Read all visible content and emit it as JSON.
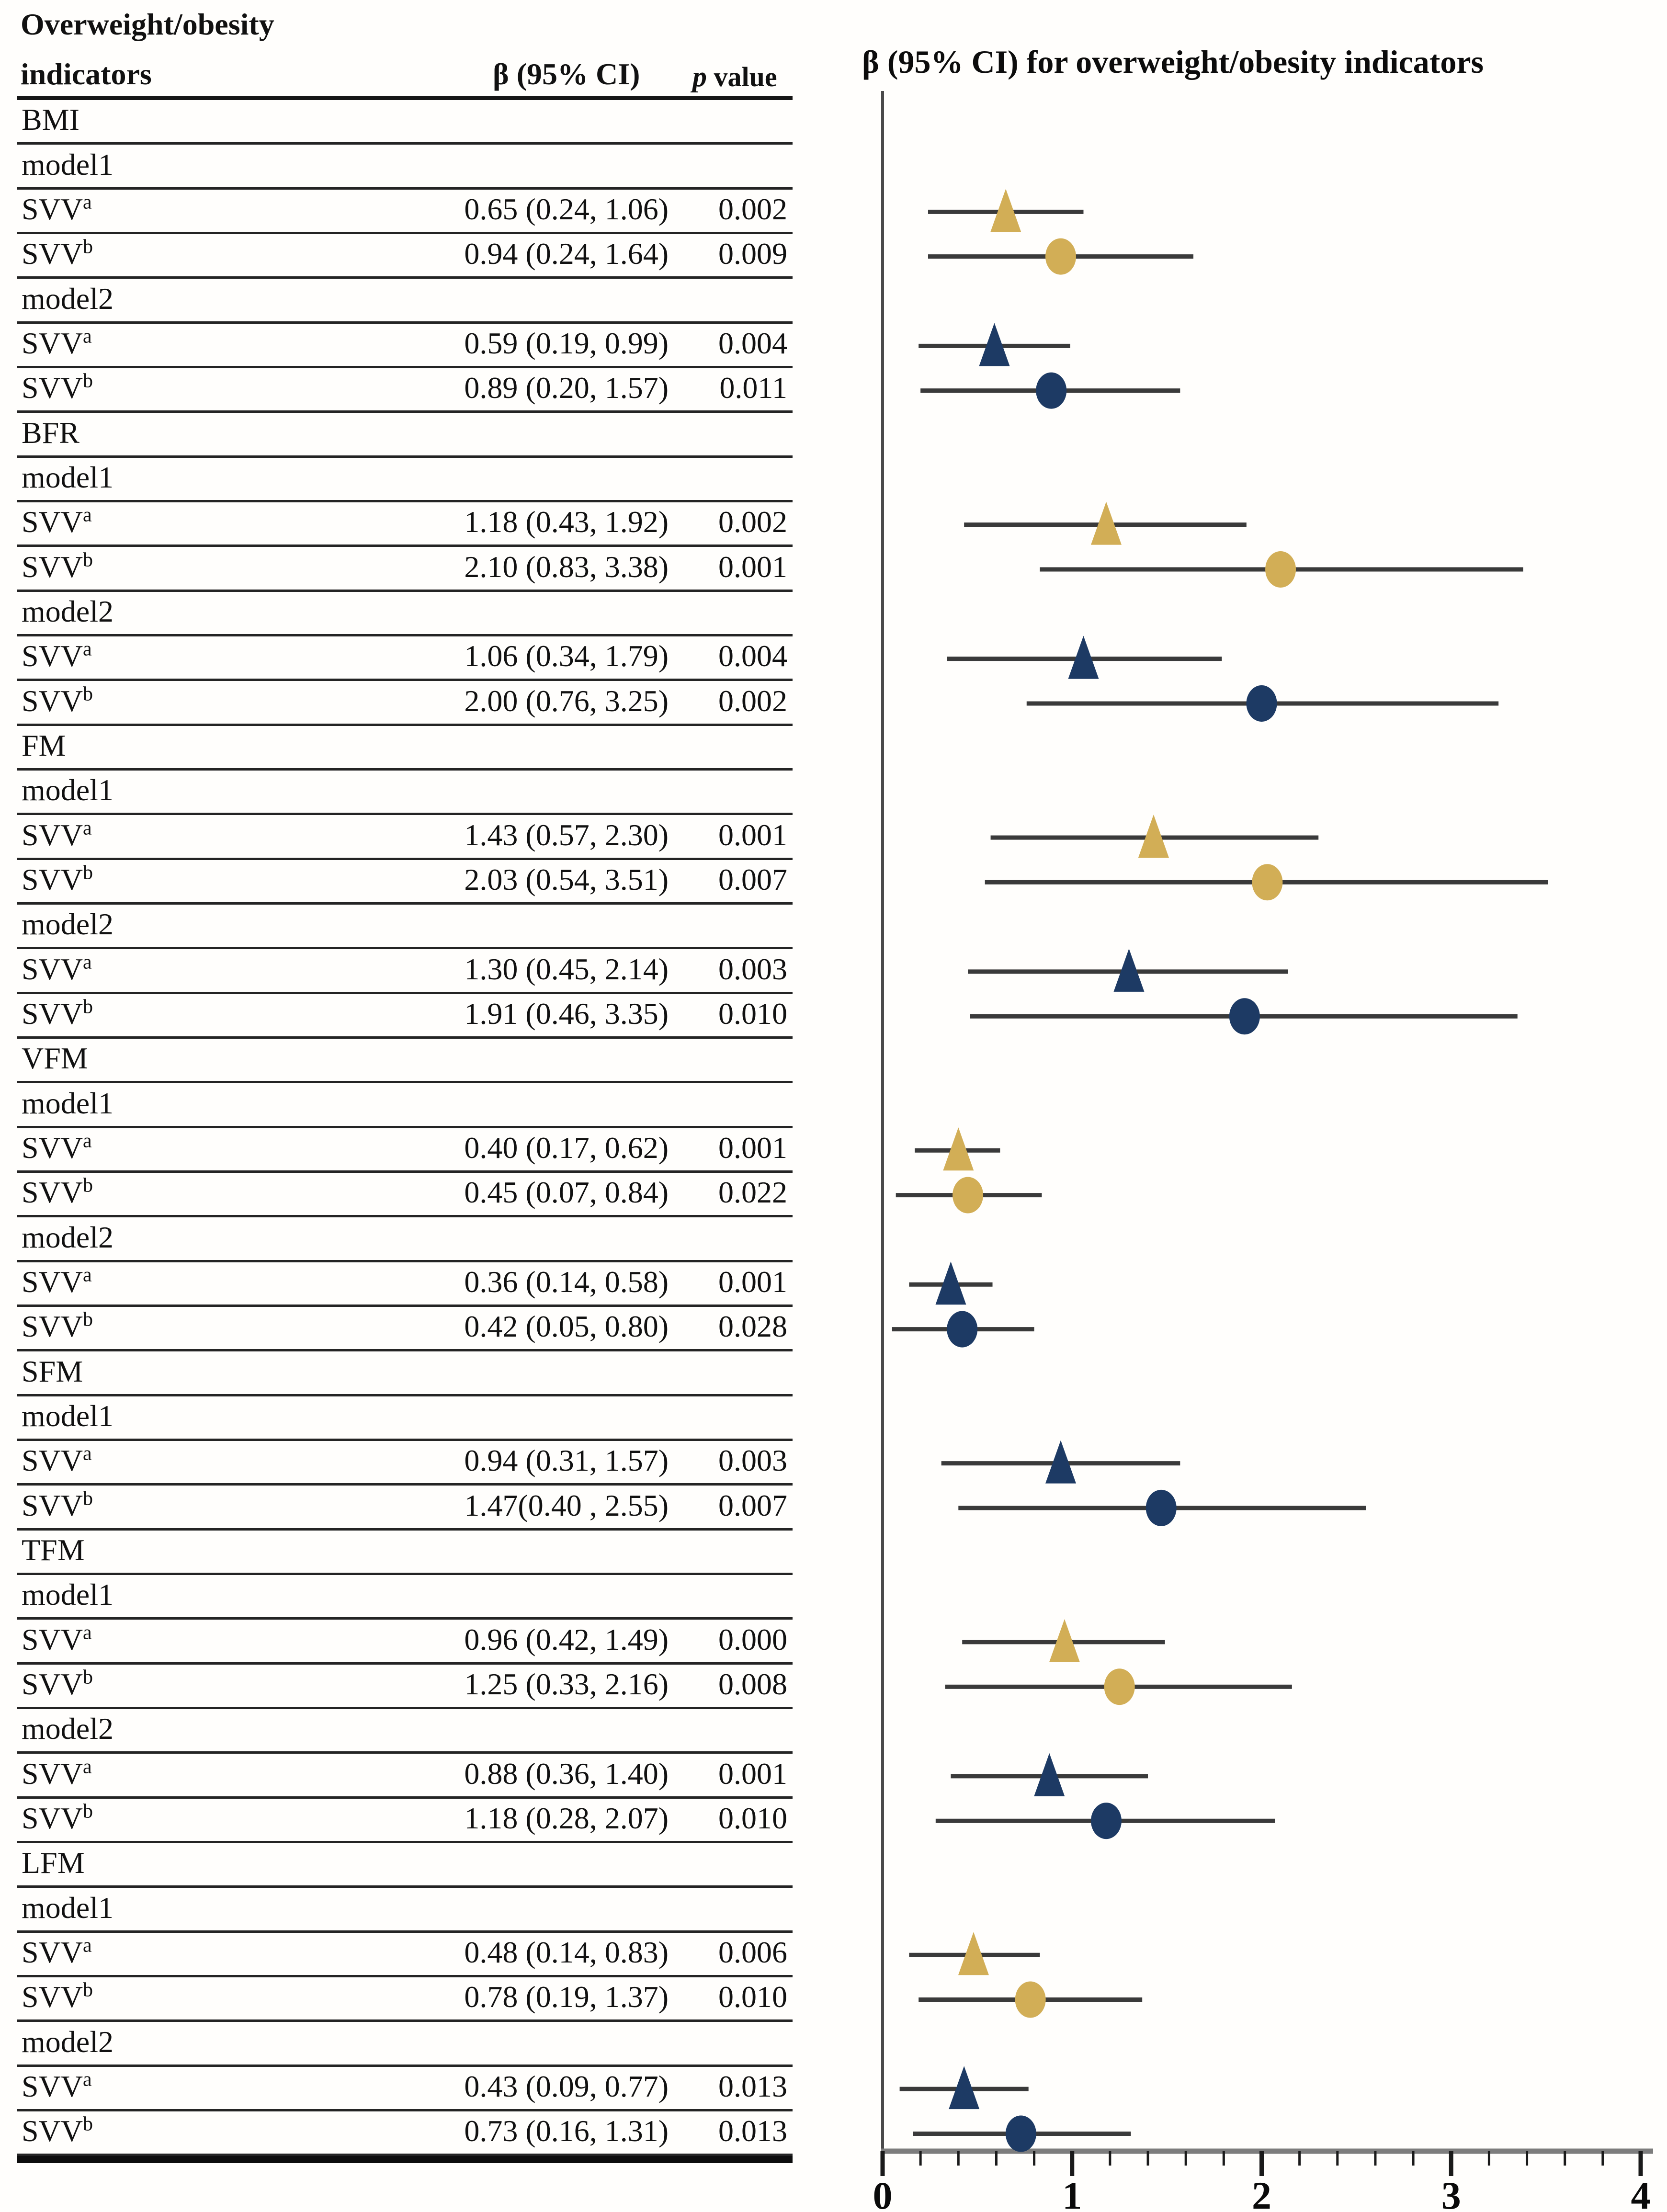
{
  "table": {
    "header": {
      "col1_line1": "Overweight/obesity",
      "col1_line2": "indicators",
      "beta_ci": "β  (95% CI)",
      "p_italic": "p",
      "p_rest": " value"
    },
    "rows": [
      {
        "type": "section",
        "label": "BMI"
      },
      {
        "type": "model",
        "label": "model1"
      },
      {
        "type": "data",
        "label": "SVV",
        "sup": "a",
        "beta_ci": "0.65 (0.24, 1.06)",
        "p": "0.002",
        "marker": {
          "shape": "triangle",
          "color": "gold",
          "beta": 0.65,
          "lo": 0.24,
          "hi": 1.06
        }
      },
      {
        "type": "data",
        "label": "SVV",
        "sup": "b",
        "beta_ci": "0.94 (0.24, 1.64)",
        "p": "0.009",
        "marker": {
          "shape": "circle",
          "color": "gold",
          "beta": 0.94,
          "lo": 0.24,
          "hi": 1.64
        }
      },
      {
        "type": "model",
        "label": "model2"
      },
      {
        "type": "data",
        "label": "SVV",
        "sup": "a",
        "beta_ci": "0.59 (0.19, 0.99)",
        "p": "0.004",
        "marker": {
          "shape": "triangle",
          "color": "navy",
          "beta": 0.59,
          "lo": 0.19,
          "hi": 0.99
        }
      },
      {
        "type": "data",
        "label": "SVV",
        "sup": "b",
        "beta_ci": "0.89 (0.20, 1.57)",
        "p": "0.011",
        "marker": {
          "shape": "circle",
          "color": "navy",
          "beta": 0.89,
          "lo": 0.2,
          "hi": 1.57
        }
      },
      {
        "type": "section",
        "label": "BFR"
      },
      {
        "type": "model",
        "label": "model1"
      },
      {
        "type": "data",
        "label": "SVV",
        "sup": "a",
        "beta_ci": "1.18 (0.43, 1.92)",
        "p": "0.002",
        "marker": {
          "shape": "triangle",
          "color": "gold",
          "beta": 1.18,
          "lo": 0.43,
          "hi": 1.92
        }
      },
      {
        "type": "data",
        "label": "SVV",
        "sup": "b",
        "beta_ci": "2.10 (0.83, 3.38)",
        "p": "0.001",
        "marker": {
          "shape": "circle",
          "color": "gold",
          "beta": 2.1,
          "lo": 0.83,
          "hi": 3.38
        }
      },
      {
        "type": "model",
        "label": "model2"
      },
      {
        "type": "data",
        "label": "SVV",
        "sup": "a",
        "beta_ci": "1.06 (0.34, 1.79)",
        "p": "0.004",
        "marker": {
          "shape": "triangle",
          "color": "navy",
          "beta": 1.06,
          "lo": 0.34,
          "hi": 1.79
        }
      },
      {
        "type": "data",
        "label": "SVV",
        "sup": "b",
        "beta_ci": "2.00 (0.76, 3.25)",
        "p": "0.002",
        "marker": {
          "shape": "circle",
          "color": "navy",
          "beta": 2.0,
          "lo": 0.76,
          "hi": 3.25
        }
      },
      {
        "type": "section",
        "label": "FM"
      },
      {
        "type": "model",
        "label": "model1"
      },
      {
        "type": "data",
        "label": "SVV",
        "sup": "a",
        "beta_ci": "1.43 (0.57, 2.30)",
        "p": "0.001",
        "marker": {
          "shape": "triangle",
          "color": "gold",
          "beta": 1.43,
          "lo": 0.57,
          "hi": 2.3
        }
      },
      {
        "type": "data",
        "label": "SVV",
        "sup": "b",
        "beta_ci": "2.03 (0.54, 3.51)",
        "p": "0.007",
        "marker": {
          "shape": "circle",
          "color": "gold",
          "beta": 2.03,
          "lo": 0.54,
          "hi": 3.51
        }
      },
      {
        "type": "model",
        "label": "model2"
      },
      {
        "type": "data",
        "label": "SVV",
        "sup": "a",
        "beta_ci": "1.30 (0.45, 2.14)",
        "p": "0.003",
        "marker": {
          "shape": "triangle",
          "color": "navy",
          "beta": 1.3,
          "lo": 0.45,
          "hi": 2.14
        }
      },
      {
        "type": "data",
        "label": "SVV",
        "sup": "b",
        "beta_ci": "1.91 (0.46, 3.35)",
        "p": "0.010",
        "marker": {
          "shape": "circle",
          "color": "navy",
          "beta": 1.91,
          "lo": 0.46,
          "hi": 3.35
        }
      },
      {
        "type": "section",
        "label": "VFM"
      },
      {
        "type": "model",
        "label": "model1"
      },
      {
        "type": "data",
        "label": "SVV",
        "sup": "a",
        "beta_ci": "0.40 (0.17, 0.62)",
        "p": "0.001",
        "marker": {
          "shape": "triangle",
          "color": "gold",
          "beta": 0.4,
          "lo": 0.17,
          "hi": 0.62
        }
      },
      {
        "type": "data",
        "label": "SVV",
        "sup": "b",
        "beta_ci": "0.45 (0.07, 0.84)",
        "p": "0.022",
        "marker": {
          "shape": "circle",
          "color": "gold",
          "beta": 0.45,
          "lo": 0.07,
          "hi": 0.84
        }
      },
      {
        "type": "model",
        "label": "model2"
      },
      {
        "type": "data",
        "label": "SVV",
        "sup": "a",
        "beta_ci": "0.36 (0.14, 0.58)",
        "p": "0.001",
        "marker": {
          "shape": "triangle",
          "color": "navy",
          "beta": 0.36,
          "lo": 0.14,
          "hi": 0.58
        }
      },
      {
        "type": "data",
        "label": "SVV",
        "sup": "b",
        "beta_ci": "0.42 (0.05, 0.80)",
        "p": "0.028",
        "marker": {
          "shape": "circle",
          "color": "navy",
          "beta": 0.42,
          "lo": 0.05,
          "hi": 0.8
        }
      },
      {
        "type": "section",
        "label": "SFM"
      },
      {
        "type": "model",
        "label": "model1"
      },
      {
        "type": "data",
        "label": "SVV",
        "sup": "a",
        "beta_ci": "0.94 (0.31, 1.57)",
        "p": "0.003",
        "marker": {
          "shape": "triangle",
          "color": "navy",
          "beta": 0.94,
          "lo": 0.31,
          "hi": 1.57
        }
      },
      {
        "type": "data",
        "label": "SVV",
        "sup": "b",
        "beta_ci": "1.47(0.40 , 2.55)",
        "p": "0.007",
        "marker": {
          "shape": "circle",
          "color": "navy",
          "beta": 1.47,
          "lo": 0.4,
          "hi": 2.55
        }
      },
      {
        "type": "section",
        "label": "TFM"
      },
      {
        "type": "model",
        "label": "model1"
      },
      {
        "type": "data",
        "label": "SVV",
        "sup": "a",
        "beta_ci": "0.96 (0.42, 1.49)",
        "p": "0.000",
        "marker": {
          "shape": "triangle",
          "color": "gold",
          "beta": 0.96,
          "lo": 0.42,
          "hi": 1.49
        }
      },
      {
        "type": "data",
        "label": "SVV",
        "sup": "b",
        "beta_ci": "1.25 (0.33, 2.16)",
        "p": "0.008",
        "marker": {
          "shape": "circle",
          "color": "gold",
          "beta": 1.25,
          "lo": 0.33,
          "hi": 2.16
        }
      },
      {
        "type": "model",
        "label": "model2"
      },
      {
        "type": "data",
        "label": "SVV",
        "sup": "a",
        "beta_ci": "0.88 (0.36, 1.40)",
        "p": "0.001",
        "marker": {
          "shape": "triangle",
          "color": "navy",
          "beta": 0.88,
          "lo": 0.36,
          "hi": 1.4
        }
      },
      {
        "type": "data",
        "label": "SVV",
        "sup": "b",
        "beta_ci": "1.18 (0.28, 2.07)",
        "p": "0.010",
        "marker": {
          "shape": "circle",
          "color": "navy",
          "beta": 1.18,
          "lo": 0.28,
          "hi": 2.07
        }
      },
      {
        "type": "section",
        "label": "LFM"
      },
      {
        "type": "model",
        "label": "model1"
      },
      {
        "type": "data",
        "label": "SVV",
        "sup": "a",
        "beta_ci": "0.48 (0.14, 0.83)",
        "p": "0.006",
        "marker": {
          "shape": "triangle",
          "color": "gold",
          "beta": 0.48,
          "lo": 0.14,
          "hi": 0.83
        }
      },
      {
        "type": "data",
        "label": "SVV",
        "sup": "b",
        "beta_ci": "0.78 (0.19, 1.37)",
        "p": "0.010",
        "marker": {
          "shape": "circle",
          "color": "gold",
          "beta": 0.78,
          "lo": 0.19,
          "hi": 1.37
        }
      },
      {
        "type": "model",
        "label": "model2"
      },
      {
        "type": "data",
        "label": "SVV",
        "sup": "a",
        "beta_ci": "0.43 (0.09, 0.77)",
        "p": "0.013",
        "marker": {
          "shape": "triangle",
          "color": "navy",
          "beta": 0.43,
          "lo": 0.09,
          "hi": 0.77
        }
      },
      {
        "type": "data",
        "label": "SVV",
        "sup": "b",
        "beta_ci": "0.73 (0.16, 1.31)",
        "p": "0.013",
        "marker": {
          "shape": "circle",
          "color": "navy",
          "beta": 0.73,
          "lo": 0.16,
          "hi": 1.31
        }
      }
    ]
  },
  "plot": {
    "title": "β  (95% CI) for overweight/obesity  indicators",
    "x_tick_labels": [
      "0",
      "1",
      "2",
      "3",
      "4"
    ],
    "colors": {
      "gold": "#D2AE56",
      "navy": "#1D3A64",
      "ci_line": "#3A3A3A",
      "axis_line": "#7D7D7D",
      "tick": "#1A1A1A",
      "vline": "#4A4A4A"
    }
  },
  "chart_data": {
    "type": "scatter",
    "subtype": "forest-plot",
    "title": "β  (95% CI) for overweight/obesity  indicators",
    "xlabel": "β (95% CI)",
    "xlim": [
      0,
      4
    ],
    "x_major_ticks": [
      0,
      1,
      2,
      3,
      4
    ],
    "x_minor_step": 0.2,
    "grid": false,
    "marker_legend": {
      "triangle": "SVVa",
      "circle": "SVVb",
      "gold": "model1",
      "navy": "model2 (SFM model1 also navy)"
    },
    "points": [
      {
        "group": "BMI",
        "model": "model1",
        "estimator": "SVVa",
        "beta": 0.65,
        "lo": 0.24,
        "hi": 1.06,
        "p": "0.002",
        "shape": "triangle",
        "color": "gold"
      },
      {
        "group": "BMI",
        "model": "model1",
        "estimator": "SVVb",
        "beta": 0.94,
        "lo": 0.24,
        "hi": 1.64,
        "p": "0.009",
        "shape": "circle",
        "color": "gold"
      },
      {
        "group": "BMI",
        "model": "model2",
        "estimator": "SVVa",
        "beta": 0.59,
        "lo": 0.19,
        "hi": 0.99,
        "p": "0.004",
        "shape": "triangle",
        "color": "navy"
      },
      {
        "group": "BMI",
        "model": "model2",
        "estimator": "SVVb",
        "beta": 0.89,
        "lo": 0.2,
        "hi": 1.57,
        "p": "0.011",
        "shape": "circle",
        "color": "navy"
      },
      {
        "group": "BFR",
        "model": "model1",
        "estimator": "SVVa",
        "beta": 1.18,
        "lo": 0.43,
        "hi": 1.92,
        "p": "0.002",
        "shape": "triangle",
        "color": "gold"
      },
      {
        "group": "BFR",
        "model": "model1",
        "estimator": "SVVb",
        "beta": 2.1,
        "lo": 0.83,
        "hi": 3.38,
        "p": "0.001",
        "shape": "circle",
        "color": "gold"
      },
      {
        "group": "BFR",
        "model": "model2",
        "estimator": "SVVa",
        "beta": 1.06,
        "lo": 0.34,
        "hi": 1.79,
        "p": "0.004",
        "shape": "triangle",
        "color": "navy"
      },
      {
        "group": "BFR",
        "model": "model2",
        "estimator": "SVVb",
        "beta": 2.0,
        "lo": 0.76,
        "hi": 3.25,
        "p": "0.002",
        "shape": "circle",
        "color": "navy"
      },
      {
        "group": "FM",
        "model": "model1",
        "estimator": "SVVa",
        "beta": 1.43,
        "lo": 0.57,
        "hi": 2.3,
        "p": "0.001",
        "shape": "triangle",
        "color": "gold"
      },
      {
        "group": "FM",
        "model": "model1",
        "estimator": "SVVb",
        "beta": 2.03,
        "lo": 0.54,
        "hi": 3.51,
        "p": "0.007",
        "shape": "circle",
        "color": "gold"
      },
      {
        "group": "FM",
        "model": "model2",
        "estimator": "SVVa",
        "beta": 1.3,
        "lo": 0.45,
        "hi": 2.14,
        "p": "0.003",
        "shape": "triangle",
        "color": "navy"
      },
      {
        "group": "FM",
        "model": "model2",
        "estimator": "SVVb",
        "beta": 1.91,
        "lo": 0.46,
        "hi": 3.35,
        "p": "0.010",
        "shape": "circle",
        "color": "navy"
      },
      {
        "group": "VFM",
        "model": "model1",
        "estimator": "SVVa",
        "beta": 0.4,
        "lo": 0.17,
        "hi": 0.62,
        "p": "0.001",
        "shape": "triangle",
        "color": "gold"
      },
      {
        "group": "VFM",
        "model": "model1",
        "estimator": "SVVb",
        "beta": 0.45,
        "lo": 0.07,
        "hi": 0.84,
        "p": "0.022",
        "shape": "circle",
        "color": "gold"
      },
      {
        "group": "VFM",
        "model": "model2",
        "estimator": "SVVa",
        "beta": 0.36,
        "lo": 0.14,
        "hi": 0.58,
        "p": "0.001",
        "shape": "triangle",
        "color": "navy"
      },
      {
        "group": "VFM",
        "model": "model2",
        "estimator": "SVVb",
        "beta": 0.42,
        "lo": 0.05,
        "hi": 0.8,
        "p": "0.028",
        "shape": "circle",
        "color": "navy"
      },
      {
        "group": "SFM",
        "model": "model1",
        "estimator": "SVVa",
        "beta": 0.94,
        "lo": 0.31,
        "hi": 1.57,
        "p": "0.003",
        "shape": "triangle",
        "color": "navy"
      },
      {
        "group": "SFM",
        "model": "model1",
        "estimator": "SVVb",
        "beta": 1.47,
        "lo": 0.4,
        "hi": 2.55,
        "p": "0.007",
        "shape": "circle",
        "color": "navy"
      },
      {
        "group": "TFM",
        "model": "model1",
        "estimator": "SVVa",
        "beta": 0.96,
        "lo": 0.42,
        "hi": 1.49,
        "p": "0.000",
        "shape": "triangle",
        "color": "gold"
      },
      {
        "group": "TFM",
        "model": "model1",
        "estimator": "SVVb",
        "beta": 1.25,
        "lo": 0.33,
        "hi": 2.16,
        "p": "0.008",
        "shape": "circle",
        "color": "gold"
      },
      {
        "group": "TFM",
        "model": "model2",
        "estimator": "SVVa",
        "beta": 0.88,
        "lo": 0.36,
        "hi": 1.4,
        "p": "0.001",
        "shape": "triangle",
        "color": "navy"
      },
      {
        "group": "TFM",
        "model": "model2",
        "estimator": "SVVb",
        "beta": 1.18,
        "lo": 0.28,
        "hi": 2.07,
        "p": "0.010",
        "shape": "circle",
        "color": "navy"
      },
      {
        "group": "LFM",
        "model": "model1",
        "estimator": "SVVa",
        "beta": 0.48,
        "lo": 0.14,
        "hi": 0.83,
        "p": "0.006",
        "shape": "triangle",
        "color": "gold"
      },
      {
        "group": "LFM",
        "model": "model1",
        "estimator": "SVVb",
        "beta": 0.78,
        "lo": 0.19,
        "hi": 1.37,
        "p": "0.010",
        "shape": "circle",
        "color": "gold"
      },
      {
        "group": "LFM",
        "model": "model2",
        "estimator": "SVVa",
        "beta": 0.43,
        "lo": 0.09,
        "hi": 0.77,
        "p": "0.013",
        "shape": "triangle",
        "color": "navy"
      },
      {
        "group": "LFM",
        "model": "model2",
        "estimator": "SVVb",
        "beta": 0.73,
        "lo": 0.16,
        "hi": 1.31,
        "p": "0.013",
        "shape": "circle",
        "color": "navy"
      }
    ]
  }
}
